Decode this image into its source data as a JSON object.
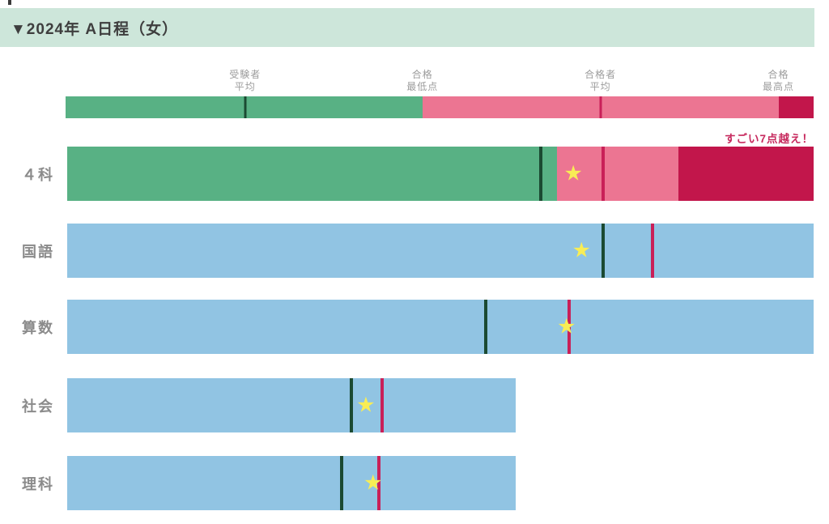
{
  "header": {
    "title": "▼2024年 A日程（女）"
  },
  "colors": {
    "header_bg": "#cde6da",
    "title_text": "#3e3e3e",
    "green": "#58b184",
    "pink": "#ec7592",
    "dark_red": "#c2164b",
    "blue": "#91c4e3",
    "line_green": "#1b4a32",
    "line_crimson": "#c92058",
    "star_yellow": "#f8ed55",
    "annotation_red": "#c72a5e"
  },
  "chart_data": {
    "type": "bar",
    "orientation": "horizontal",
    "title": "▼2024年 A日程（女）",
    "legend_position": "top",
    "legend": {
      "labels": [
        {
          "key": "examinee-average",
          "lines": [
            "受験者",
            "平均"
          ],
          "position_pct": 24.0
        },
        {
          "key": "pass-minimum",
          "lines": [
            "合格",
            "最低点"
          ],
          "position_pct": 47.7
        },
        {
          "key": "passer-average",
          "lines": [
            "合格者",
            "平均"
          ],
          "position_pct": 71.5
        },
        {
          "key": "pass-maximum",
          "lines": [
            "合格",
            "最高点"
          ],
          "position_pct": 95.3
        }
      ],
      "scale_bar": {
        "segments": [
          {
            "color_key": "green",
            "from_pct": 0,
            "to_pct": 47.7
          },
          {
            "color_key": "pink",
            "from_pct": 47.7,
            "to_pct": 95.3
          },
          {
            "color_key": "dark_red",
            "from_pct": 95.3,
            "to_pct": 100
          }
        ],
        "lines": [
          {
            "key": "examinee-average",
            "color_key": "line_green",
            "position_pct": 24.0
          },
          {
            "key": "passer-average",
            "color_key": "line_crimson",
            "position_pct": 71.5
          }
        ]
      }
    },
    "annotation": {
      "text": "すごい7点越え！",
      "applies_to": "４科"
    },
    "rows": [
      {
        "key": "yonka",
        "label": "４科",
        "bar_length_pct": 100,
        "segments": [
          {
            "color_key": "green",
            "from_pct": 0,
            "to_pct": 65.6
          },
          {
            "color_key": "pink",
            "from_pct": 65.6,
            "to_pct": 81.9
          },
          {
            "color_key": "dark_red",
            "from_pct": 81.9,
            "to_pct": 100
          }
        ],
        "lines": [
          {
            "key": "examinee-average",
            "color_key": "line_green",
            "position_pct": 63.4
          },
          {
            "key": "passer-average",
            "color_key": "line_crimson",
            "position_pct": 71.8
          }
        ],
        "star_position_pct": 67.8
      },
      {
        "key": "kokugo",
        "label": "国語",
        "bar_length_pct": 100,
        "segments": [
          {
            "color_key": "blue",
            "from_pct": 0,
            "to_pct": 100
          }
        ],
        "lines": [
          {
            "key": "examinee-average",
            "color_key": "line_green",
            "position_pct": 71.8
          },
          {
            "key": "passer-average",
            "color_key": "line_crimson",
            "position_pct": 78.4
          }
        ],
        "star_position_pct": 68.9
      },
      {
        "key": "sansu",
        "label": "算数",
        "bar_length_pct": 100,
        "segments": [
          {
            "color_key": "blue",
            "from_pct": 0,
            "to_pct": 100
          }
        ],
        "lines": [
          {
            "key": "examinee-average",
            "color_key": "line_green",
            "position_pct": 56.1
          },
          {
            "key": "passer-average",
            "color_key": "line_crimson",
            "position_pct": 67.2
          }
        ],
        "star_position_pct": 66.9
      },
      {
        "key": "shakai",
        "label": "社会",
        "bar_length_pct": 60.1,
        "segments": [
          {
            "color_key": "blue",
            "from_pct": 0,
            "to_pct": 100
          }
        ],
        "lines": [
          {
            "key": "examinee-average",
            "color_key": "line_green",
            "position_pct": 63.4
          },
          {
            "key": "passer-average",
            "color_key": "line_crimson",
            "position_pct": 70.2
          }
        ],
        "star_position_pct": 66.6
      },
      {
        "key": "rika",
        "label": "理科",
        "bar_length_pct": 60.1,
        "segments": [
          {
            "color_key": "blue",
            "from_pct": 0,
            "to_pct": 100
          }
        ],
        "lines": [
          {
            "key": "examinee-average",
            "color_key": "line_green",
            "position_pct": 61.2
          },
          {
            "key": "passer-average",
            "color_key": "line_crimson",
            "position_pct": 69.5
          }
        ],
        "star_position_pct": 68.2
      }
    ]
  }
}
